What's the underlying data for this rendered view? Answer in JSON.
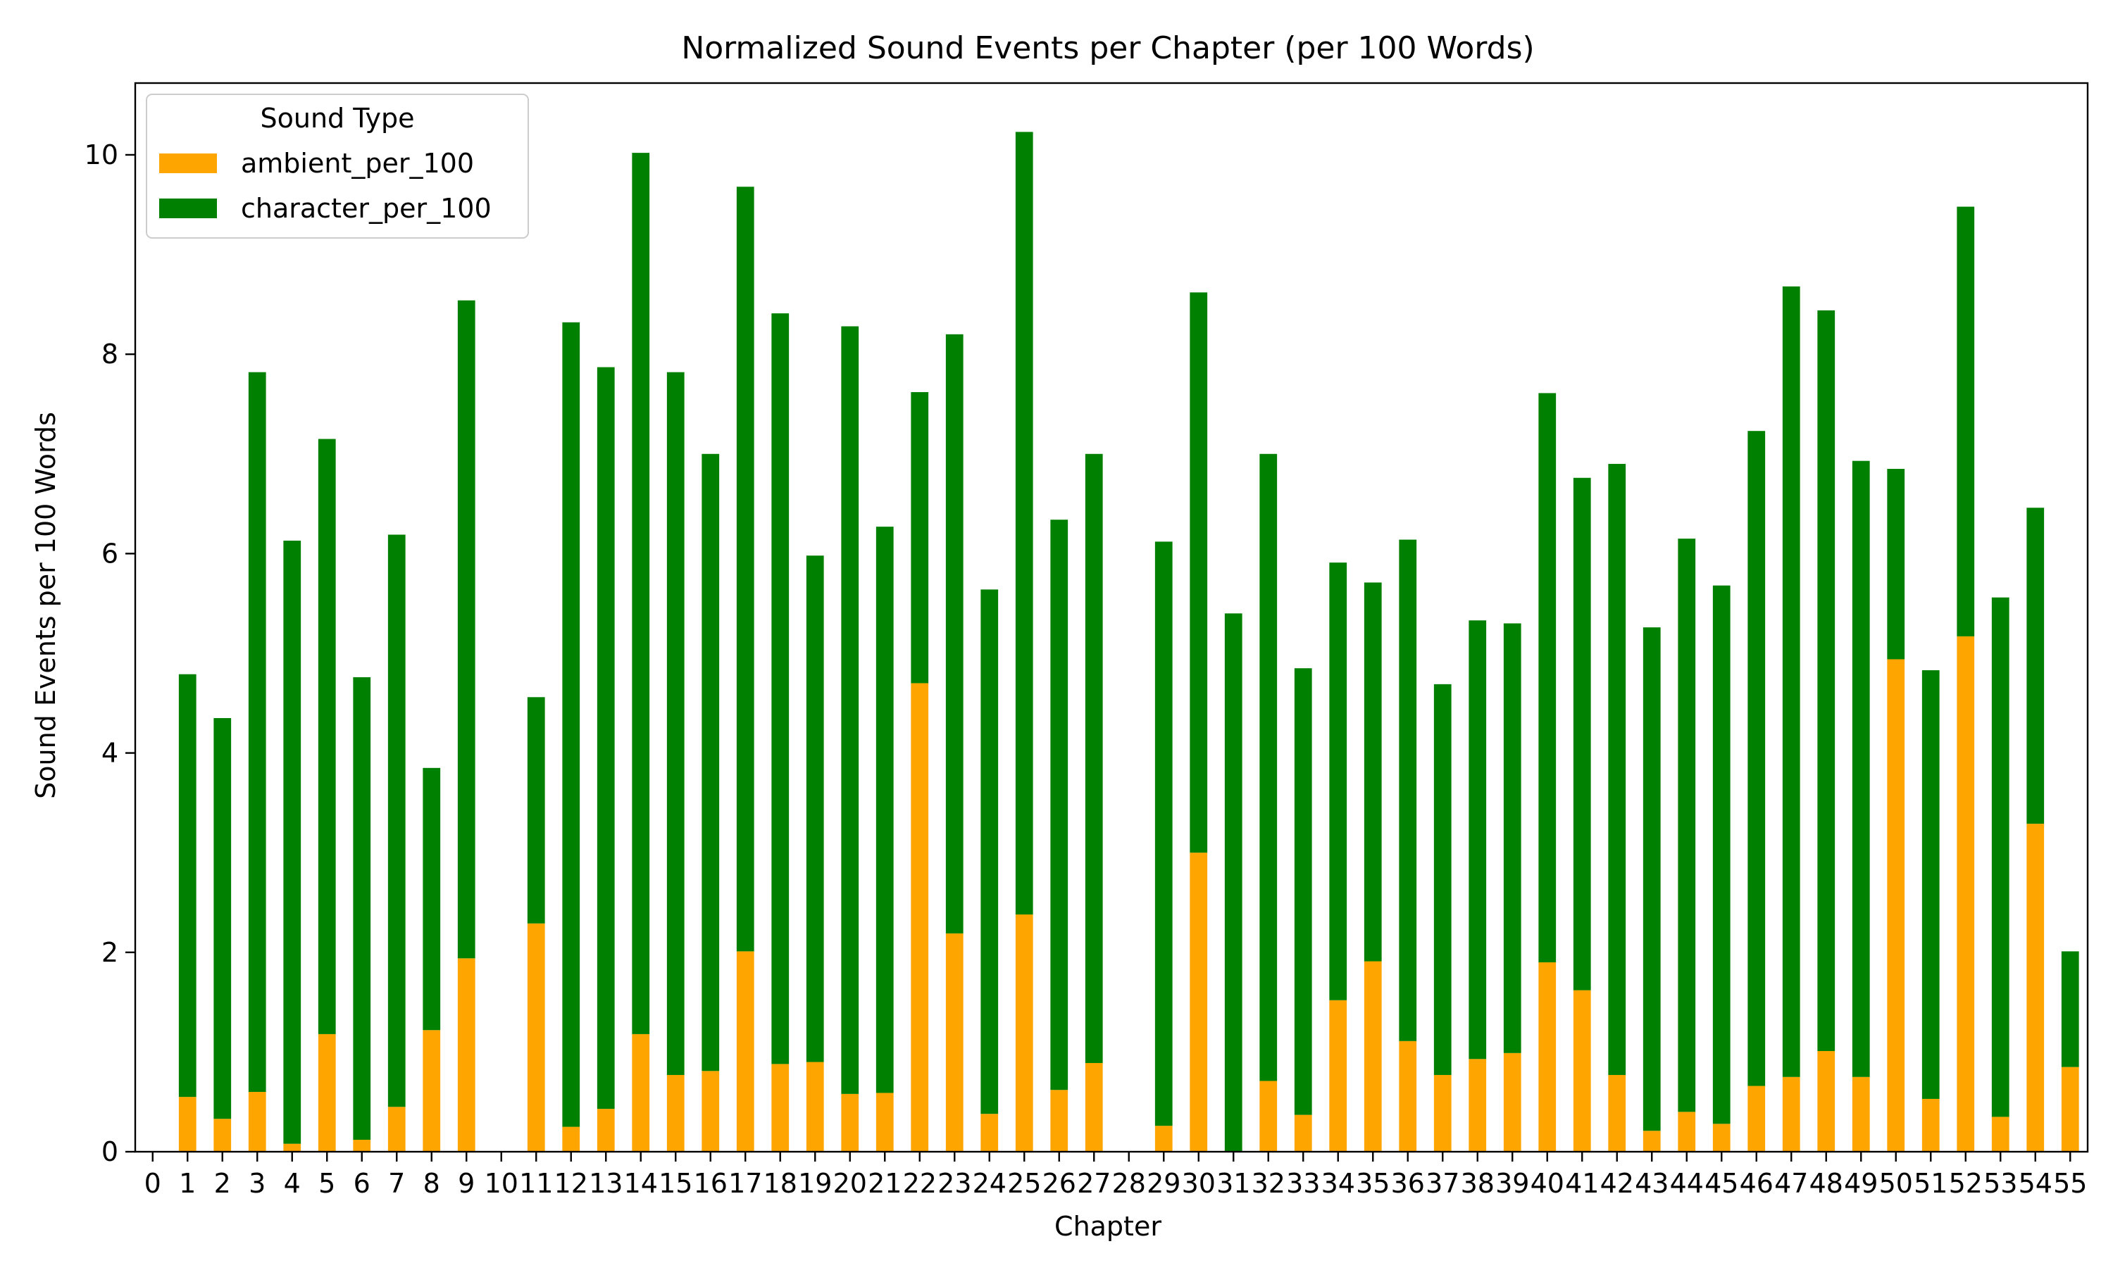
{
  "chart_data": {
    "type": "bar",
    "stacked": true,
    "title": "Normalized Sound Events per Chapter (per 100 Words)",
    "xlabel": "Chapter",
    "ylabel": "Sound Events per 100 Words",
    "ylim": [
      0,
      10.72
    ],
    "yticks": [
      0,
      2,
      4,
      6,
      8,
      10
    ],
    "grid": false,
    "legend": {
      "title": "Sound Type",
      "placement": "top-left"
    },
    "categories": [
      "0",
      "1",
      "2",
      "3",
      "4",
      "5",
      "6",
      "7",
      "8",
      "9",
      "10",
      "11",
      "12",
      "13",
      "14",
      "15",
      "16",
      "17",
      "18",
      "19",
      "20",
      "21",
      "22",
      "23",
      "24",
      "25",
      "26",
      "27",
      "28",
      "29",
      "30",
      "31",
      "32",
      "33",
      "34",
      "35",
      "36",
      "37",
      "38",
      "39",
      "40",
      "41",
      "42",
      "43",
      "44",
      "45",
      "46",
      "47",
      "48",
      "49",
      "50",
      "51",
      "52",
      "53",
      "54",
      "55"
    ],
    "series": [
      {
        "name": "ambient_per_100",
        "color": "#ffa500",
        "values": [
          0,
          0.55,
          0.33,
          0.6,
          0.08,
          1.18,
          0.12,
          0.45,
          1.22,
          1.94,
          0,
          2.29,
          0.25,
          0.43,
          1.18,
          0.77,
          0.81,
          2.01,
          0.88,
          0.9,
          0.58,
          0.59,
          4.7,
          2.19,
          0.38,
          2.38,
          0.62,
          0.89,
          0,
          0.26,
          3.0,
          0,
          0.71,
          0.37,
          1.52,
          1.91,
          1.11,
          0.77,
          0.93,
          0.99,
          1.9,
          1.62,
          0.77,
          0.21,
          0.4,
          0.28,
          0.66,
          0.75,
          1.01,
          0.75,
          4.94,
          0.53,
          5.17,
          0.35,
          3.29,
          0.85
        ]
      },
      {
        "name": "character_per_100",
        "color": "#008000",
        "values": [
          0,
          4.24,
          4.02,
          7.22,
          6.05,
          5.97,
          4.64,
          5.74,
          2.63,
          6.6,
          0,
          2.27,
          8.07,
          7.44,
          8.84,
          7.05,
          6.19,
          7.67,
          7.53,
          5.08,
          7.7,
          5.68,
          2.92,
          6.01,
          5.26,
          7.85,
          5.72,
          6.11,
          0,
          5.86,
          5.62,
          5.4,
          6.29,
          4.48,
          4.39,
          3.8,
          5.03,
          3.92,
          4.4,
          4.31,
          5.71,
          5.14,
          6.13,
          5.05,
          5.75,
          5.4,
          6.57,
          7.93,
          7.43,
          6.18,
          1.91,
          4.3,
          4.31,
          5.21,
          3.17,
          1.16
        ]
      }
    ]
  }
}
